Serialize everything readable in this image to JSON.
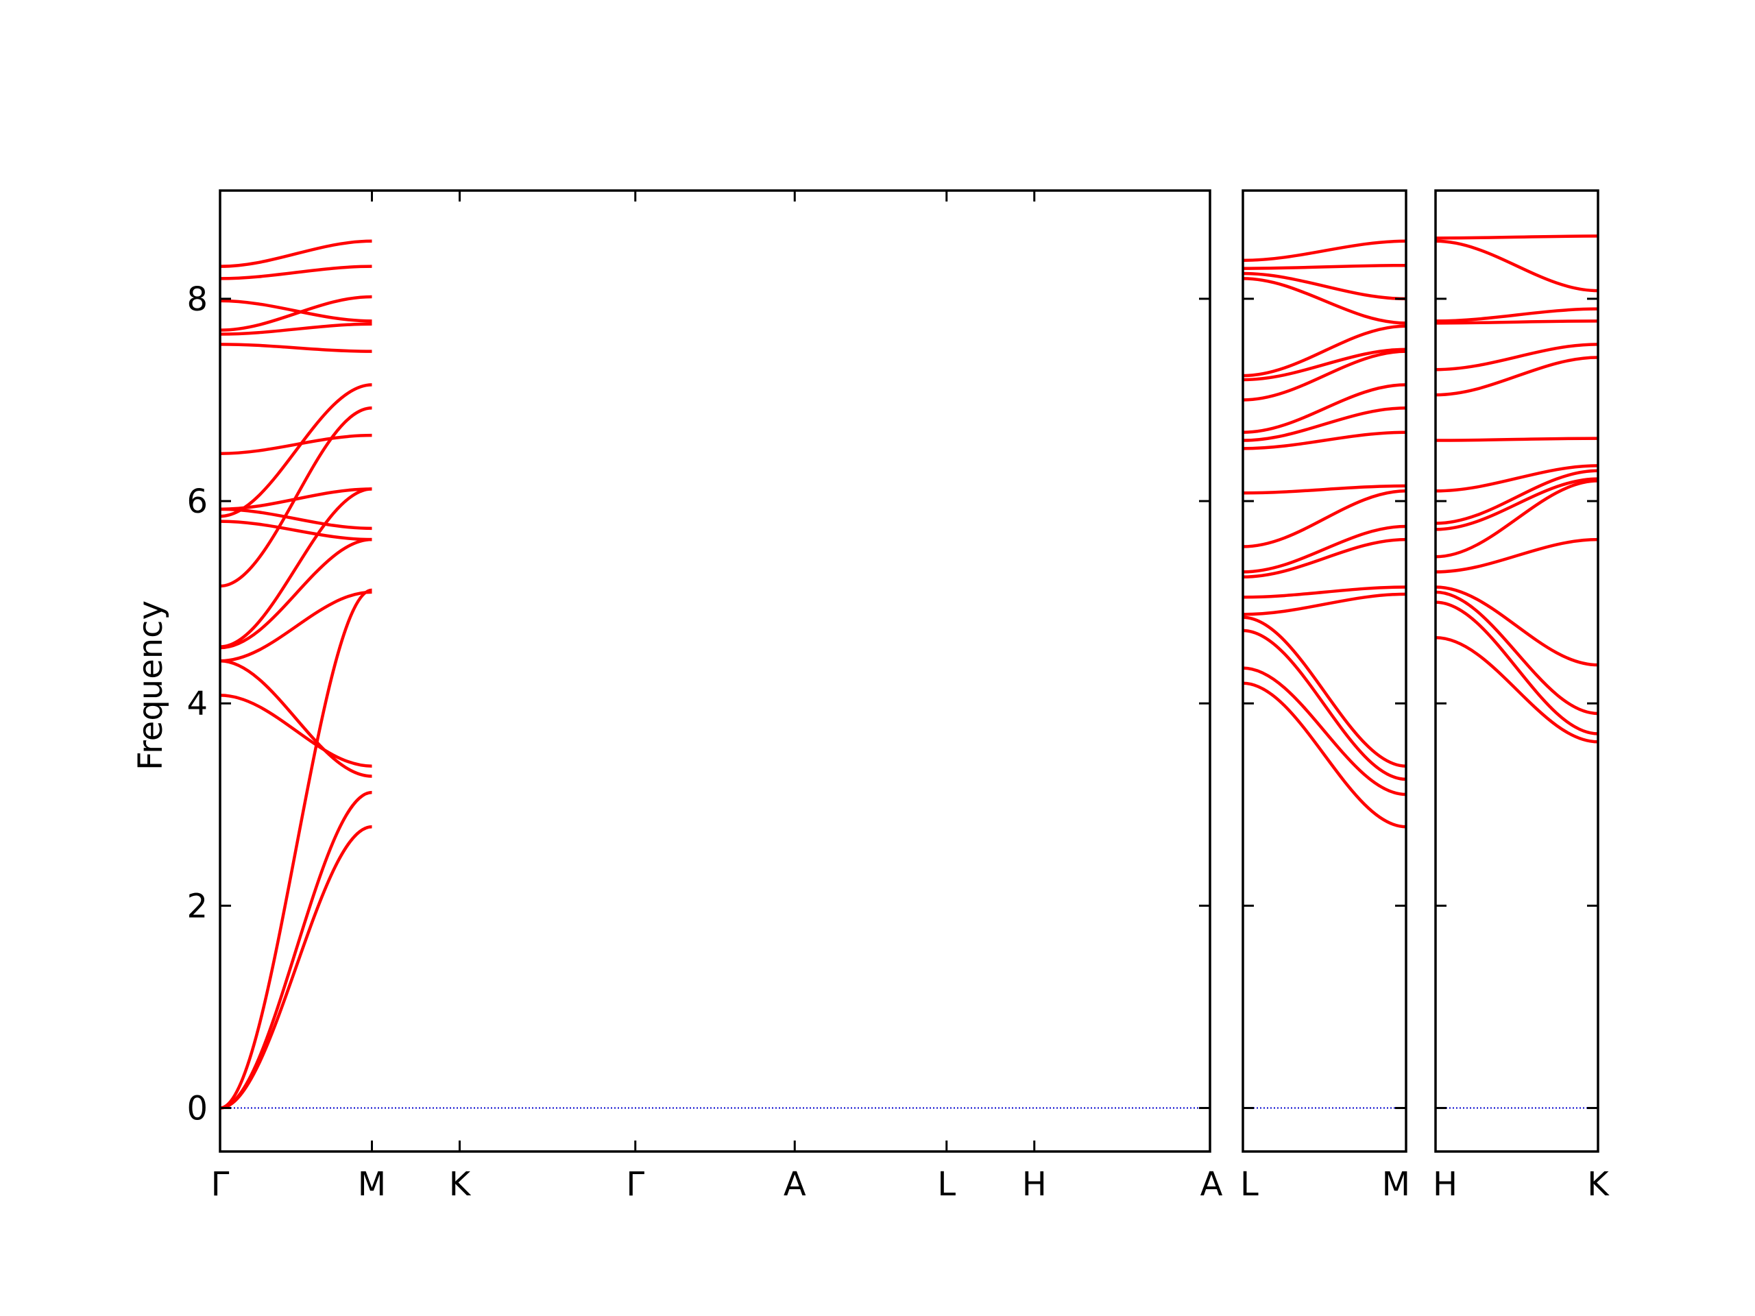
{
  "chart_data": {
    "type": "line",
    "title": "",
    "xlabel": "",
    "ylabel": "Frequency",
    "ylim": [
      -0.43,
      9.07
    ],
    "yticks": [
      0,
      2,
      4,
      6,
      8
    ],
    "ytick_labels": [
      "0",
      "2",
      "4",
      "6",
      "8"
    ],
    "grid": false,
    "legend": "none",
    "line_color": "#ff0000",
    "zero_line_color": "#0000cc",
    "panels": [
      {
        "segments": [
          {
            "labels": [
              "Γ",
              "M"
            ],
            "length": 0.905
          },
          {
            "labels": [
              "M",
              "K"
            ],
            "length": 0.523
          },
          {
            "labels": [
              "K",
              "Γ"
            ],
            "length": 1.047
          },
          {
            "labels": [
              "Γ",
              "A"
            ],
            "length": 0.95
          },
          {
            "labels": [
              "A",
              "L"
            ],
            "length": 0.905
          },
          {
            "labels": [
              "L",
              "H"
            ],
            "length": 0.523
          },
          {
            "labels": [
              "H",
              "A"
            ],
            "length": 1.047
          }
        ],
        "tick_labels": [
          "Γ",
          "M",
          "K",
          "Γ",
          "A",
          "L",
          "H",
          "A"
        ]
      },
      {
        "segments": [
          {
            "labels": [
              "L",
              "M"
            ],
            "length": 0.95
          }
        ],
        "tick_labels": [
          "L",
          "M"
        ]
      },
      {
        "segments": [
          {
            "labels": [
              "H",
              "K"
            ],
            "length": 0.95
          }
        ],
        "tick_labels": [
          "H",
          "K"
        ]
      }
    ],
    "bands": {
      "panel_1_segment_1": [
        [
          0,
          2.78
        ],
        [
          0,
          3.12
        ],
        [
          0,
          5.12
        ],
        [
          4.08,
          3.38
        ],
        [
          4.42,
          3.28
        ],
        [
          4.42,
          5.1
        ],
        [
          4.55,
          5.62
        ],
        [
          4.56,
          6.12
        ],
        [
          5.16,
          6.92
        ],
        [
          5.8,
          5.62
        ],
        [
          5.85,
          7.15
        ],
        [
          5.92,
          5.73
        ],
        [
          5.92,
          6.12
        ],
        [
          6.47,
          6.65
        ],
        [
          7.55,
          7.48
        ],
        [
          7.65,
          7.75
        ],
        [
          7.69,
          8.02
        ],
        [
          7.98,
          7.78
        ],
        [
          8.2,
          8.32
        ],
        [
          8.32,
          8.57
        ]
      ],
      "panel_2_segment_1": [
        [
          4.2,
          2.78
        ],
        [
          4.35,
          3.1
        ],
        [
          4.72,
          3.25
        ],
        [
          4.85,
          3.38
        ],
        [
          4.88,
          5.08
        ],
        [
          5.05,
          5.15
        ],
        [
          5.25,
          5.62
        ],
        [
          5.3,
          5.75
        ],
        [
          5.55,
          6.1
        ],
        [
          6.08,
          6.15
        ],
        [
          6.52,
          6.68
        ],
        [
          6.6,
          6.92
        ],
        [
          6.68,
          7.15
        ],
        [
          7.0,
          7.48
        ],
        [
          7.2,
          7.5
        ],
        [
          7.24,
          7.73
        ],
        [
          8.2,
          7.76
        ],
        [
          8.25,
          8.0
        ],
        [
          8.3,
          8.33
        ],
        [
          8.38,
          8.57
        ]
      ],
      "panel_3_segment_1": [
        [
          4.65,
          3.62
        ],
        [
          5.0,
          3.7
        ],
        [
          5.1,
          3.9
        ],
        [
          5.15,
          4.38
        ],
        [
          5.3,
          5.62
        ],
        [
          5.45,
          6.2
        ],
        [
          5.72,
          6.22
        ],
        [
          5.78,
          6.3
        ],
        [
          6.1,
          6.35
        ],
        [
          6.6,
          6.62
        ],
        [
          7.05,
          7.42
        ],
        [
          7.3,
          7.55
        ],
        [
          7.76,
          7.78
        ],
        [
          7.78,
          7.9
        ],
        [
          8.57,
          8.08
        ],
        [
          8.6,
          8.62
        ]
      ]
    }
  }
}
